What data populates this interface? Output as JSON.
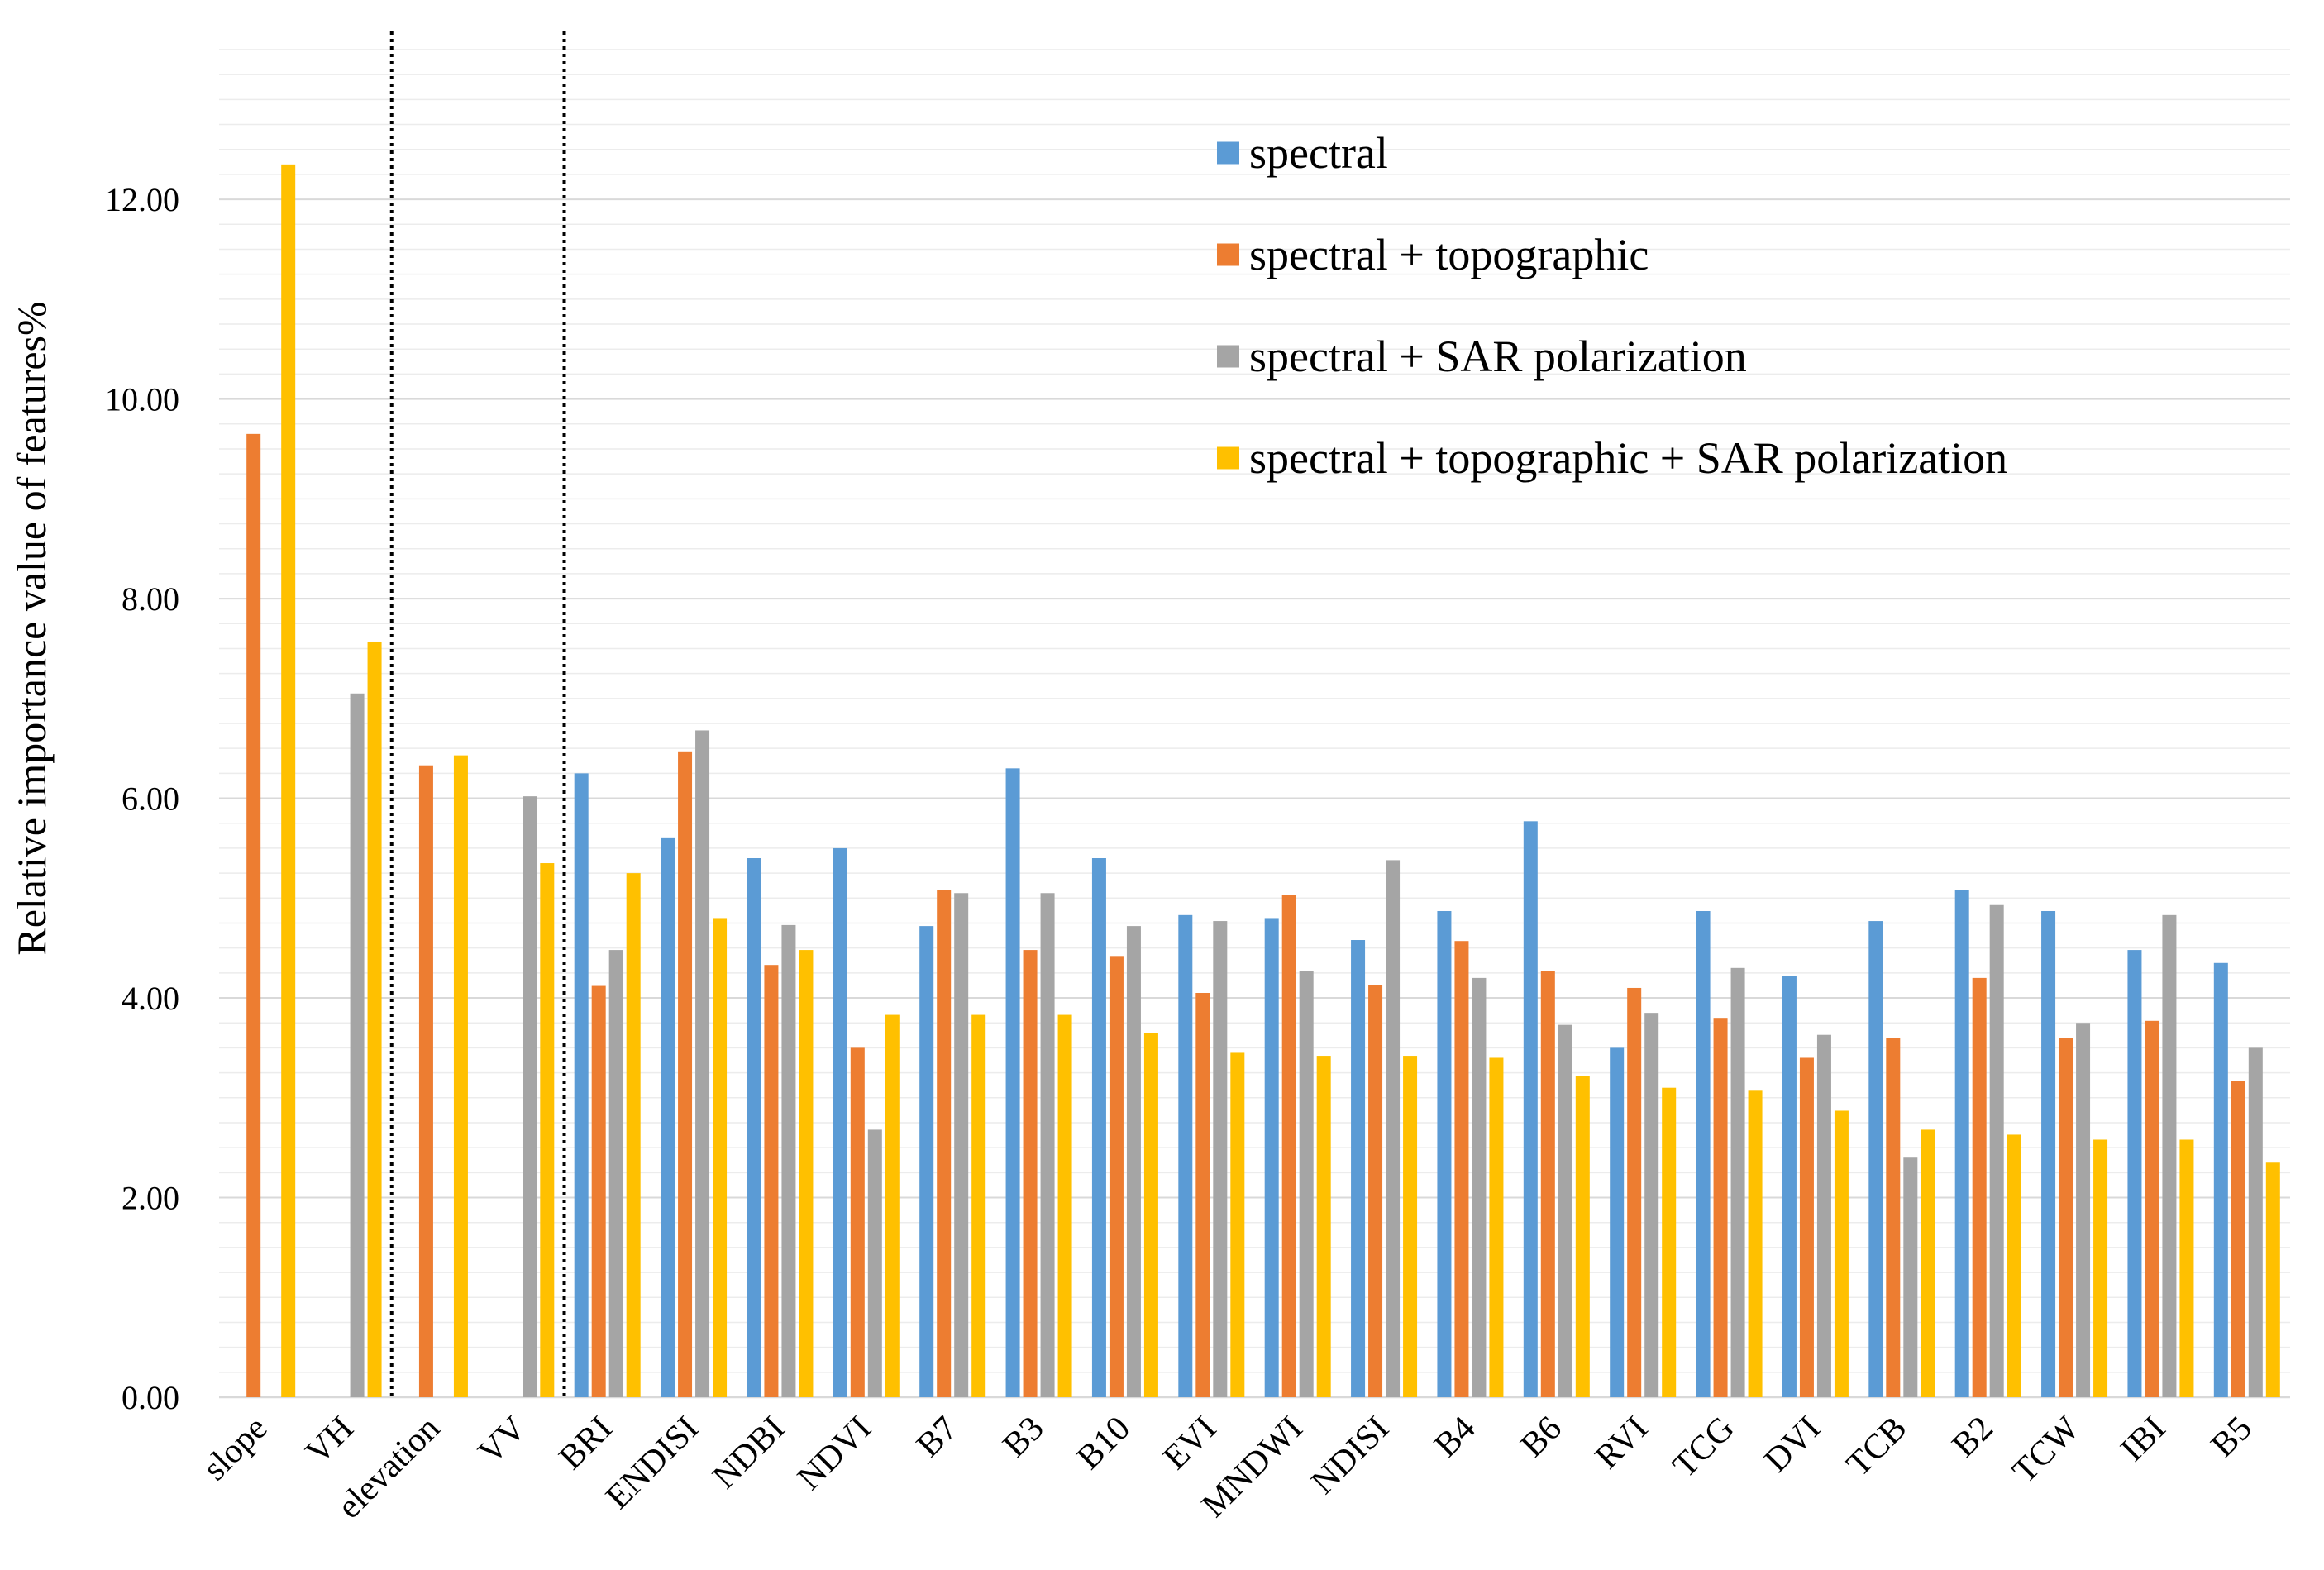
{
  "chart_data": {
    "type": "bar",
    "title": "",
    "xlabel": "",
    "ylabel": "Relative importance value of features%",
    "ylim": [
      0,
      13.5
    ],
    "yticks": [
      0,
      2,
      4,
      6,
      8,
      10,
      12
    ],
    "ytick_labels": [
      "0.00",
      "2.00",
      "4.00",
      "6.00",
      "8.00",
      "10.00",
      "12.00"
    ],
    "grid": true,
    "legend_position": "top-right",
    "categories": [
      "slope",
      "VH",
      "elevation",
      "VV",
      "BRI",
      "ENDISI",
      "NDBI",
      "NDVI",
      "B7",
      "B3",
      "B10",
      "EVI",
      "MNDWI",
      "NDISI",
      "B4",
      "B6",
      "RVI",
      "TCG",
      "DVI",
      "TCB",
      "B2",
      "TCW",
      "IBI",
      "B5"
    ],
    "separators_after": [
      "VH",
      "VV"
    ],
    "series": [
      {
        "name": "spectral",
        "color": "#5B9BD5",
        "values": [
          null,
          null,
          null,
          null,
          6.25,
          5.6,
          5.4,
          5.5,
          4.72,
          6.3,
          5.4,
          4.83,
          4.8,
          4.58,
          4.87,
          5.77,
          3.5,
          4.87,
          4.22,
          4.77,
          5.08,
          4.87,
          4.48,
          4.35
        ]
      },
      {
        "name": "spectral + topographic",
        "color": "#ED7D31",
        "values": [
          9.65,
          null,
          6.33,
          null,
          4.12,
          6.47,
          4.33,
          3.5,
          5.08,
          4.48,
          4.42,
          4.05,
          5.03,
          4.13,
          4.57,
          4.27,
          4.1,
          3.8,
          3.4,
          3.6,
          4.2,
          3.6,
          3.77,
          3.17
        ]
      },
      {
        "name": "spectral + SAR polarization",
        "color": "#A5A5A5",
        "values": [
          null,
          7.05,
          null,
          6.02,
          4.48,
          6.68,
          4.73,
          2.68,
          5.05,
          5.05,
          4.72,
          4.77,
          4.27,
          5.38,
          4.2,
          3.73,
          3.85,
          4.3,
          3.63,
          2.4,
          4.93,
          3.75,
          4.83,
          3.5
        ]
      },
      {
        "name": "spectral + topographic + SAR polarization",
        "color": "#FFC000",
        "values": [
          12.35,
          7.57,
          6.43,
          5.35,
          5.25,
          4.8,
          4.48,
          3.83,
          3.83,
          3.83,
          3.65,
          3.45,
          3.42,
          3.42,
          3.4,
          3.22,
          3.1,
          3.07,
          2.87,
          2.68,
          2.63,
          2.58,
          2.58,
          2.35
        ]
      }
    ]
  }
}
